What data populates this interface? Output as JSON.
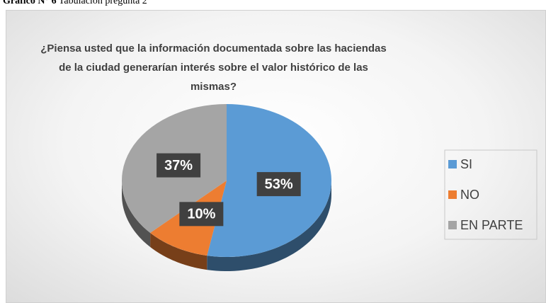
{
  "caption": {
    "label": "Gráfico N° 6",
    "text": "Tabulación pregunta 2"
  },
  "chart_data": {
    "type": "pie",
    "title": "¿Piensa usted que la información documentada sobre las haciendas de la ciudad generarían interés sobre el valor histórico de las mismas?",
    "categories": [
      "SI",
      "NO",
      "EN PARTE"
    ],
    "values": [
      53,
      10,
      37
    ],
    "value_labels": [
      "53%",
      "10%",
      "37%"
    ],
    "colors": [
      "#5b9bd5",
      "#ed7d31",
      "#a5a5a5"
    ],
    "legend": "right"
  }
}
